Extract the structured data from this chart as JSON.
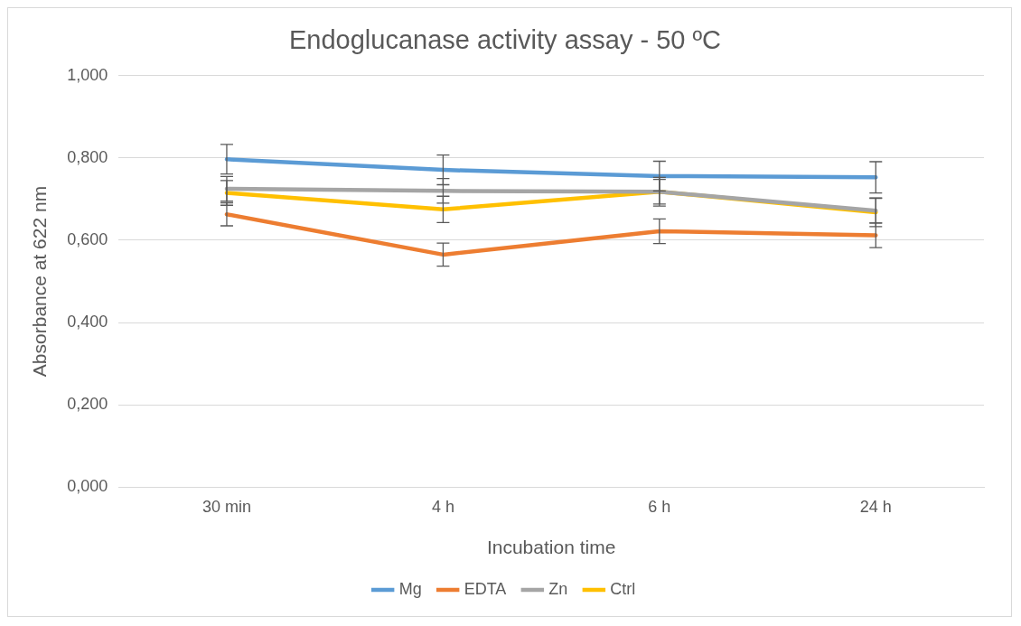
{
  "chart_data": {
    "type": "line",
    "title": "Endoglucanase activity assay - 50 ºC",
    "xlabel": "Incubation time",
    "ylabel": "Absorbance at 622 nm",
    "categories": [
      "30 min",
      "4 h",
      "6 h",
      "24 h"
    ],
    "series": [
      {
        "name": "Mg",
        "color": "#5b9bd5",
        "values": [
          0.797,
          0.771,
          0.756,
          0.753
        ],
        "errors": [
          0.036,
          0.036,
          0.036,
          0.038
        ]
      },
      {
        "name": "EDTA",
        "color": "#ed7d31",
        "values": [
          0.663,
          0.565,
          0.622,
          0.612
        ],
        "errors": [
          0.028,
          0.028,
          0.03,
          0.03
        ]
      },
      {
        "name": "Zn",
        "color": "#a5a5a5",
        "values": [
          0.725,
          0.72,
          0.718,
          0.672
        ],
        "errors": [
          0.03,
          0.03,
          0.03,
          0.03
        ]
      },
      {
        "name": "Ctrl",
        "color": "#ffc000",
        "values": [
          0.715,
          0.675,
          0.718,
          0.668
        ],
        "errors": [
          0.03,
          0.032,
          0.035,
          0.035
        ]
      }
    ],
    "ylim": [
      0,
      1
    ],
    "yticks": [
      {
        "value": 0,
        "label": "0,000"
      },
      {
        "value": 0.2,
        "label": "0,200"
      },
      {
        "value": 0.4,
        "label": "0,400"
      },
      {
        "value": 0.6,
        "label": "0,600"
      },
      {
        "value": 0.8,
        "label": "0,800"
      },
      {
        "value": 1,
        "label": "1,000"
      }
    ],
    "grid": "y",
    "legend": "bottom",
    "marker": "none",
    "line_style": "solid"
  }
}
